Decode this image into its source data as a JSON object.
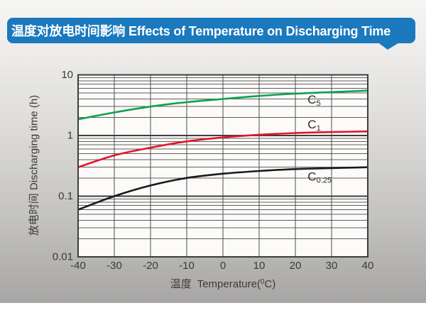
{
  "banner": {
    "title": "温度对放电时间影响 Effects of Temperature on Discharging Time",
    "background_color": "#1B79BE",
    "text_color": "#FFFFFF"
  },
  "axes": {
    "y_title": "放电时间 Discharging time (h)",
    "x_title_parts": {
      "cjk": "温度",
      "en_prefix": "Temperature(",
      "superscript": "0",
      "suffix": "C)"
    },
    "y_tick_labels": [
      "10",
      "1",
      "0.1",
      "0.01"
    ],
    "y_tick_values": [
      10,
      1,
      0.1,
      0.01
    ],
    "x_tick_labels": [
      "-40",
      "-30",
      "-20",
      "-10",
      "0",
      "10",
      "20",
      "30",
      "40"
    ],
    "x_tick_values": [
      -40,
      -30,
      -20,
      -10,
      0,
      10,
      20,
      30,
      40
    ]
  },
  "chart_data": {
    "type": "line",
    "title": "温度对放电时间影响 Effects of Temperature on Discharging Time",
    "xlabel": "温度 Temperature(°C)",
    "ylabel": "放电时间 Discharging time (h)",
    "x": [
      -40,
      -30,
      -20,
      -10,
      0,
      10,
      20,
      30,
      40
    ],
    "xlim": [
      -40,
      40
    ],
    "ylim": [
      0.01,
      10
    ],
    "yscale": "log",
    "grid": true,
    "legend_position": "inline-labels",
    "series": [
      {
        "name": "C5",
        "label_main": "C",
        "label_sub": "5",
        "color": "#0DA24F",
        "values": [
          1.85,
          2.4,
          3.0,
          3.55,
          4.0,
          4.5,
          4.9,
          5.2,
          5.5
        ]
      },
      {
        "name": "C1",
        "label_main": "C",
        "label_sub": "1",
        "color": "#E3152A",
        "values": [
          0.3,
          0.47,
          0.63,
          0.8,
          0.93,
          1.03,
          1.1,
          1.14,
          1.17
        ]
      },
      {
        "name": "C0.25",
        "label_main": "C",
        "label_sub": "0.25",
        "color": "#1A1A1A",
        "values": [
          0.06,
          0.1,
          0.15,
          0.2,
          0.235,
          0.26,
          0.28,
          0.29,
          0.3
        ]
      }
    ]
  }
}
